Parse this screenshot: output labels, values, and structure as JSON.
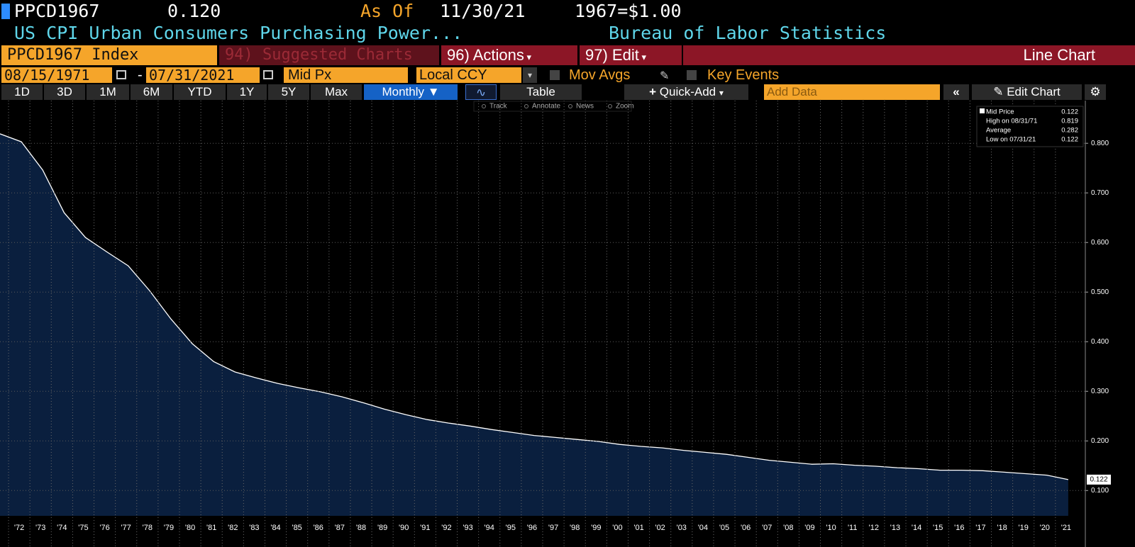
{
  "header": {
    "ticker": "PPCD1967",
    "price": "0.120",
    "as_of_label": "As Of",
    "as_of_date": "11/30/21",
    "base": "1967=$1.00",
    "description": "US CPI Urban Consumers Purchasing Power...",
    "source": "Bureau of Labor Statistics"
  },
  "menu": {
    "security": "PPCD1967 Index",
    "suggested": "94) Suggested Charts",
    "actions": "96) Actions",
    "edit": "97) Edit",
    "chart_type": "Line Chart"
  },
  "settings": {
    "start_date": "08/15/1971",
    "separator": "-",
    "end_date": "07/31/2021",
    "field": "Mid Px",
    "currency": "Local CCY",
    "mov_avgs": "Mov Avgs",
    "key_events": "Key Events"
  },
  "toolbar": {
    "periods": [
      "1D",
      "3D",
      "1M",
      "6M",
      "YTD",
      "1Y",
      "5Y",
      "Max"
    ],
    "frequency": "Monthly",
    "table": "Table",
    "quick_add": "Quick-Add",
    "add_data": "Add Data",
    "edit_chart": "Edit Chart"
  },
  "chart_tools": [
    "Track",
    "Annotate",
    "News",
    "Zoom"
  ],
  "legend": [
    {
      "label": "Mid Price",
      "value": "0.122"
    },
    {
      "label": "High on 08/31/71",
      "value": "0.819"
    },
    {
      "label": "Average",
      "value": "0.282"
    },
    {
      "label": "Low on 07/31/21",
      "value": "0.122"
    }
  ],
  "chart_data": {
    "type": "area",
    "color": "#ffffff",
    "fill": "#0a1f3e",
    "x": [
      1971.6,
      1972.6,
      1973.6,
      1974.6,
      1975.6,
      1976.6,
      1977.6,
      1978.6,
      1979.6,
      1980.6,
      1981.6,
      1982.6,
      1983.6,
      1984.6,
      1985.6,
      1986.6,
      1987.6,
      1988.6,
      1989.6,
      1990.6,
      1991.6,
      1992.6,
      1993.6,
      1994.6,
      1995.6,
      1996.6,
      1997.6,
      1998.6,
      1999.6,
      2000.6,
      2001.6,
      2002.6,
      2003.6,
      2004.6,
      2005.6,
      2006.6,
      2007.6,
      2008.6,
      2009.6,
      2010.6,
      2011.6,
      2012.6,
      2013.6,
      2014.6,
      2015.6,
      2016.6,
      2017.6,
      2018.6,
      2019.6,
      2020.6,
      2021.6
    ],
    "values": [
      0.819,
      0.803,
      0.746,
      0.66,
      0.61,
      0.581,
      0.553,
      0.503,
      0.446,
      0.396,
      0.36,
      0.339,
      0.327,
      0.316,
      0.307,
      0.299,
      0.289,
      0.277,
      0.264,
      0.253,
      0.243,
      0.236,
      0.23,
      0.223,
      0.217,
      0.211,
      0.207,
      0.203,
      0.199,
      0.193,
      0.189,
      0.186,
      0.181,
      0.177,
      0.173,
      0.167,
      0.161,
      0.157,
      0.153,
      0.154,
      0.151,
      0.149,
      0.146,
      0.144,
      0.141,
      0.141,
      0.14,
      0.137,
      0.134,
      0.131,
      0.122
    ],
    "xlim": [
      1971.6,
      2022.4
    ],
    "ylim": [
      0.049,
      0.886
    ],
    "xticks": [
      {
        "value": 1972,
        "label": "'72"
      },
      {
        "value": 1973,
        "label": "'73"
      },
      {
        "value": 1974,
        "label": "'74"
      },
      {
        "value": 1975,
        "label": "'75"
      },
      {
        "value": 1976,
        "label": "'76"
      },
      {
        "value": 1977,
        "label": "'77"
      },
      {
        "value": 1978,
        "label": "'78"
      },
      {
        "value": 1979,
        "label": "'79"
      },
      {
        "value": 1980,
        "label": "'80"
      },
      {
        "value": 1981,
        "label": "'81"
      },
      {
        "value": 1982,
        "label": "'82"
      },
      {
        "value": 1983,
        "label": "'83"
      },
      {
        "value": 1984,
        "label": "'84"
      },
      {
        "value": 1985,
        "label": "'85"
      },
      {
        "value": 1986,
        "label": "'86"
      },
      {
        "value": 1987,
        "label": "'87"
      },
      {
        "value": 1988,
        "label": "'88"
      },
      {
        "value": 1989,
        "label": "'89"
      },
      {
        "value": 1990,
        "label": "'90"
      },
      {
        "value": 1991,
        "label": "'91"
      },
      {
        "value": 1992,
        "label": "'92"
      },
      {
        "value": 1993,
        "label": "'93"
      },
      {
        "value": 1994,
        "label": "'94"
      },
      {
        "value": 1995,
        "label": "'95"
      },
      {
        "value": 1996,
        "label": "'96"
      },
      {
        "value": 1997,
        "label": "'97"
      },
      {
        "value": 1998,
        "label": "'98"
      },
      {
        "value": 1999,
        "label": "'99"
      },
      {
        "value": 2000,
        "label": "'00"
      },
      {
        "value": 2001,
        "label": "'01"
      },
      {
        "value": 2002,
        "label": "'02"
      },
      {
        "value": 2003,
        "label": "'03"
      },
      {
        "value": 2004,
        "label": "'04"
      },
      {
        "value": 2005,
        "label": "'05"
      },
      {
        "value": 2006,
        "label": "'06"
      },
      {
        "value": 2007,
        "label": "'07"
      },
      {
        "value": 2008,
        "label": "'08"
      },
      {
        "value": 2009,
        "label": "'09"
      },
      {
        "value": 2010,
        "label": "'10"
      },
      {
        "value": 2011,
        "label": "'11"
      },
      {
        "value": 2012,
        "label": "'12"
      },
      {
        "value": 2013,
        "label": "'13"
      },
      {
        "value": 2014,
        "label": "'14"
      },
      {
        "value": 2015,
        "label": "'15"
      },
      {
        "value": 2016,
        "label": "'16"
      },
      {
        "value": 2017,
        "label": "'17"
      },
      {
        "value": 2018,
        "label": "'18"
      },
      {
        "value": 2019,
        "label": "'19"
      },
      {
        "value": 2020,
        "label": "'20"
      },
      {
        "value": 2021,
        "label": "'21"
      }
    ],
    "yticks": [
      {
        "value": 0.1,
        "label": "0.100"
      },
      {
        "value": 0.2,
        "label": "0.200"
      },
      {
        "value": 0.3,
        "label": "0.300"
      },
      {
        "value": 0.4,
        "label": "0.400"
      },
      {
        "value": 0.5,
        "label": "0.500"
      },
      {
        "value": 0.6,
        "label": "0.600"
      },
      {
        "value": 0.7,
        "label": "0.700"
      },
      {
        "value": 0.8,
        "label": "0.800"
      }
    ],
    "grid": true,
    "last_value_label": "0.122"
  }
}
